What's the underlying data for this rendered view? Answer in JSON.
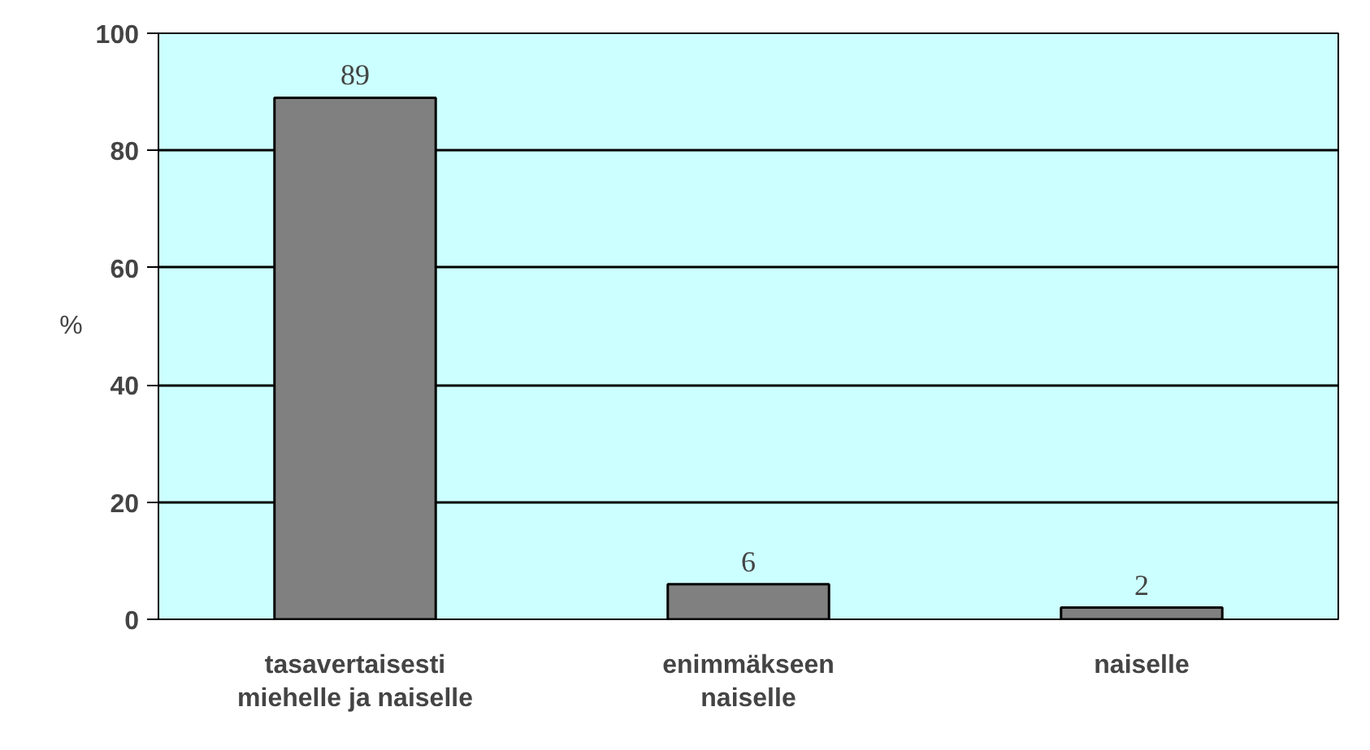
{
  "chart_data": {
    "type": "bar",
    "ylabel": "%",
    "categories": [
      "tasavertaisesti\nmiehelle ja naiselle",
      "enimmäkseen\nnaiselle",
      "naiselle"
    ],
    "values": [
      89,
      6,
      2
    ],
    "color": "#808080",
    "ylim": [
      0,
      100
    ],
    "yticks": [
      0,
      20,
      40,
      60,
      80,
      100
    ],
    "grid": "y",
    "data_labels": true
  }
}
